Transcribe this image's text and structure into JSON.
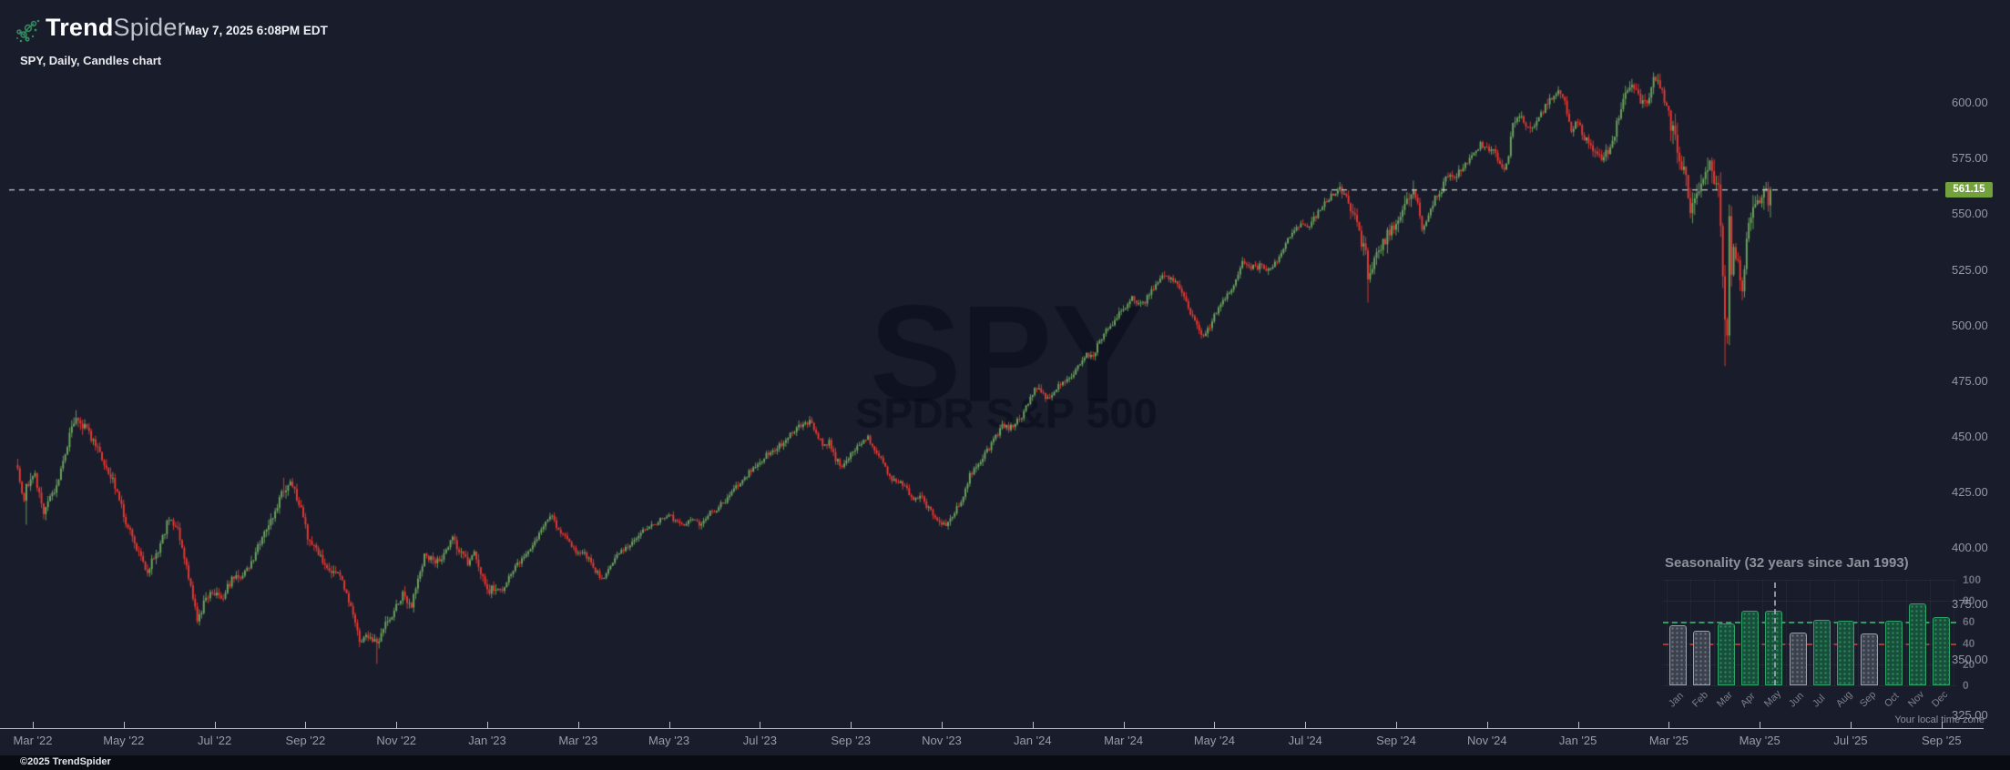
{
  "header": {
    "brand_bold": "Trend",
    "brand_light": "Spider",
    "datetime": "May 7, 2025 6:08PM EDT",
    "subtitle": "SPY, Daily, Candles chart"
  },
  "watermark": {
    "symbol": "SPY",
    "name": "SPDR S&P 500"
  },
  "footer": {
    "copyright": "©2025 TrendSpider",
    "timezone_note": "Your local time zone"
  },
  "colors": {
    "background": "#191d2b",
    "candle_up": "#6ca45f",
    "candle_down": "#e73832",
    "last_price_badge": "#73a23d",
    "dashed_price_line": "#d9dce4",
    "axis_line": "#b9bdc7",
    "seasonality_green": "#2fa468",
    "seasonality_gray": "#9aa0ad",
    "seasonality_avg_up_line": "#2f9e5f",
    "seasonality_avg_down_line": "#a83a33"
  },
  "price_axis": {
    "values": [
      600,
      575,
      550,
      525,
      500,
      475,
      450,
      425,
      400,
      375,
      350,
      325
    ],
    "labels": [
      "600.00",
      "575.00",
      "550.00",
      "525.00",
      "500.00",
      "475.00",
      "450.00",
      "425.00",
      "400.00",
      "375.00",
      "350.00",
      "325.00"
    ],
    "last_price": 561.15,
    "last_price_label": "561.15"
  },
  "x_axis": {
    "labels": [
      "Mar '22",
      "May '22",
      "Jul '22",
      "Sep '22",
      "Nov '22",
      "Jan '23",
      "Mar '23",
      "May '23",
      "Jul '23",
      "Sep '23",
      "Nov '23",
      "Jan '24",
      "Mar '24",
      "May '24",
      "Jul '24",
      "Sep '24",
      "Nov '24",
      "Jan '25",
      "Mar '25",
      "May '25",
      "Jul '25",
      "Sep '25"
    ]
  },
  "chart_data": [
    {
      "type": "candlestick",
      "symbol": "SPY",
      "timeframe": "Daily",
      "ylim": [
        325,
        620
      ],
      "x_range_labels": [
        "Mar '22",
        "Sep '25"
      ],
      "last_close": 561.15,
      "candle_count": 811,
      "price_path_anchors": [
        [
          0,
          434
        ],
        [
          3,
          421
        ],
        [
          4,
          428
        ],
        [
          8,
          432
        ],
        [
          12,
          417
        ],
        [
          17,
          425
        ],
        [
          22,
          444
        ],
        [
          27,
          460
        ],
        [
          33,
          451
        ],
        [
          40,
          439
        ],
        [
          45,
          428
        ],
        [
          50,
          412
        ],
        [
          55,
          400
        ],
        [
          60,
          389
        ],
        [
          63,
          396
        ],
        [
          66,
          401
        ],
        [
          70,
          414
        ],
        [
          74,
          409
        ],
        [
          78,
          393
        ],
        [
          83,
          367
        ],
        [
          86,
          375
        ],
        [
          90,
          380
        ],
        [
          94,
          377
        ],
        [
          99,
          386
        ],
        [
          104,
          388
        ],
        [
          109,
          395
        ],
        [
          112,
          403
        ],
        [
          118,
          414
        ],
        [
          123,
          427
        ],
        [
          126,
          429
        ],
        [
          130,
          421
        ],
        [
          134,
          405
        ],
        [
          138,
          400
        ],
        [
          142,
          392
        ],
        [
          146,
          390
        ],
        [
          150,
          386
        ],
        [
          153,
          377
        ],
        [
          156,
          367
        ],
        [
          158,
          359
        ],
        [
          162,
          361
        ],
        [
          166,
          357
        ],
        [
          170,
          366
        ],
        [
          174,
          372
        ],
        [
          178,
          379
        ],
        [
          182,
          374
        ],
        [
          186,
          390
        ],
        [
          188,
          397
        ],
        [
          192,
          395
        ],
        [
          196,
          394
        ],
        [
          201,
          405
        ],
        [
          204,
          399
        ],
        [
          208,
          393
        ],
        [
          211,
          398
        ],
        [
          214,
          389
        ],
        [
          218,
          381
        ],
        [
          221,
          383
        ],
        [
          224,
          381
        ],
        [
          228,
          389
        ],
        [
          232,
          394
        ],
        [
          236,
          398
        ],
        [
          240,
          405
        ],
        [
          244,
          412
        ],
        [
          247,
          415
        ],
        [
          250,
          408
        ],
        [
          254,
          404
        ],
        [
          258,
          398
        ],
        [
          261,
          399
        ],
        [
          264,
          395
        ],
        [
          267,
          390
        ],
        [
          270,
          386
        ],
        [
          273,
          390
        ],
        [
          276,
          395
        ],
        [
          279,
          399
        ],
        [
          283,
          402
        ],
        [
          287,
          406
        ],
        [
          290,
          409
        ],
        [
          294,
          411
        ],
        [
          298,
          413
        ],
        [
          301,
          415
        ],
        [
          304,
          412
        ],
        [
          307,
          410
        ],
        [
          311,
          413
        ],
        [
          315,
          411
        ],
        [
          319,
          415
        ],
        [
          323,
          418
        ],
        [
          327,
          421
        ],
        [
          331,
          426
        ],
        [
          335,
          431
        ],
        [
          338,
          434
        ],
        [
          341,
          437
        ],
        [
          344,
          440
        ],
        [
          347,
          443
        ],
        [
          351,
          445
        ],
        [
          355,
          449
        ],
        [
          359,
          453
        ],
        [
          363,
          456
        ],
        [
          366,
          457
        ],
        [
          369,
          452
        ],
        [
          372,
          446
        ],
        [
          375,
          448
        ],
        [
          378,
          440
        ],
        [
          381,
          437
        ],
        [
          384,
          441
        ],
        [
          387,
          445
        ],
        [
          390,
          448
        ],
        [
          393,
          450
        ],
        [
          396,
          443
        ],
        [
          399,
          440
        ],
        [
          402,
          434
        ],
        [
          405,
          430
        ],
        [
          408,
          429
        ],
        [
          411,
          426
        ],
        [
          414,
          421
        ],
        [
          417,
          424
        ],
        [
          420,
          419
        ],
        [
          423,
          415
        ],
        [
          426,
          412
        ],
        [
          429,
          410
        ],
        [
          431,
          413
        ],
        [
          434,
          418
        ],
        [
          437,
          423
        ],
        [
          440,
          433
        ],
        [
          443,
          437
        ],
        [
          446,
          441
        ],
        [
          449,
          445
        ],
        [
          452,
          450
        ],
        [
          455,
          455
        ],
        [
          458,
          454
        ],
        [
          461,
          456
        ],
        [
          464,
          459
        ],
        [
          467,
          466
        ],
        [
          470,
          472
        ],
        [
          473,
          470
        ],
        [
          476,
          467
        ],
        [
          479,
          470
        ],
        [
          482,
          474
        ],
        [
          485,
          476
        ],
        [
          488,
          479
        ],
        [
          491,
          483
        ],
        [
          494,
          487
        ],
        [
          497,
          487
        ],
        [
          500,
          493
        ],
        [
          503,
          499
        ],
        [
          506,
          501
        ],
        [
          509,
          505
        ],
        [
          512,
          509
        ],
        [
          515,
          513
        ],
        [
          518,
          510
        ],
        [
          521,
          511
        ],
        [
          524,
          516
        ],
        [
          527,
          519
        ],
        [
          530,
          523
        ],
        [
          533,
          521
        ],
        [
          536,
          519
        ],
        [
          539,
          513
        ],
        [
          542,
          506
        ],
        [
          545,
          501
        ],
        [
          548,
          495
        ],
        [
          551,
          500
        ],
        [
          554,
          506
        ],
        [
          557,
          511
        ],
        [
          560,
          515
        ],
        [
          563,
          520
        ],
        [
          566,
          528
        ],
        [
          569,
          527
        ],
        [
          572,
          526
        ],
        [
          575,
          527
        ],
        [
          578,
          525
        ],
        [
          581,
          528
        ],
        [
          584,
          533
        ],
        [
          587,
          539
        ],
        [
          590,
          543
        ],
        [
          593,
          546
        ],
        [
          596,
          544
        ],
        [
          599,
          548
        ],
        [
          602,
          552
        ],
        [
          605,
          556
        ],
        [
          608,
          559
        ],
        [
          611,
          562
        ],
        [
          614,
          557
        ],
        [
          617,
          551
        ],
        [
          620,
          541
        ],
        [
          623,
          532
        ],
        [
          624,
          520
        ],
        [
          627,
          529
        ],
        [
          630,
          534
        ],
        [
          633,
          541
        ],
        [
          636,
          543
        ],
        [
          639,
          550
        ],
        [
          642,
          556
        ],
        [
          645,
          561
        ],
        [
          647,
          554
        ],
        [
          649,
          543
        ],
        [
          652,
          549
        ],
        [
          655,
          557
        ],
        [
          658,
          561
        ],
        [
          661,
          568
        ],
        [
          664,
          567
        ],
        [
          667,
          570
        ],
        [
          670,
          573
        ],
        [
          673,
          577
        ],
        [
          676,
          582
        ],
        [
          679,
          580
        ],
        [
          682,
          578
        ],
        [
          685,
          573
        ],
        [
          687,
          569
        ],
        [
          689,
          577
        ],
        [
          691,
          591
        ],
        [
          694,
          595
        ],
        [
          697,
          590
        ],
        [
          700,
          588
        ],
        [
          703,
          593
        ],
        [
          706,
          599
        ],
        [
          709,
          602
        ],
        [
          712,
          605
        ],
        [
          715,
          600
        ],
        [
          718,
          588
        ],
        [
          721,
          592
        ],
        [
          723,
          586
        ],
        [
          726,
          582
        ],
        [
          729,
          577
        ],
        [
          732,
          575
        ],
        [
          735,
          578
        ],
        [
          738,
          586
        ],
        [
          741,
          599
        ],
        [
          744,
          605
        ],
        [
          747,
          607
        ],
        [
          750,
          601
        ],
        [
          753,
          600
        ],
        [
          756,
          611
        ],
        [
          759,
          608
        ],
        [
          762,
          599
        ],
        [
          765,
          586
        ],
        [
          768,
          577
        ],
        [
          771,
          566
        ],
        [
          773,
          552
        ],
        [
          776,
          558
        ],
        [
          779,
          564
        ],
        [
          782,
          572
        ],
        [
          784,
          560
        ],
        [
          786,
          565
        ],
        [
          787,
          547
        ],
        [
          788,
          525
        ],
        [
          789,
          504
        ],
        [
          790,
          497
        ],
        [
          791,
          548
        ],
        [
          792,
          524
        ],
        [
          793,
          533
        ],
        [
          795,
          527
        ],
        [
          797,
          514
        ],
        [
          798,
          527
        ],
        [
          799,
          536
        ],
        [
          800,
          547
        ],
        [
          802,
          551
        ],
        [
          804,
          555
        ],
        [
          806,
          559
        ],
        [
          808,
          564
        ],
        [
          809,
          557
        ],
        [
          810,
          561.15
        ]
      ],
      "wick_overrides": {
        "lows": [
          [
            4,
            410.6
          ],
          [
            166,
            348.1
          ],
          [
            624,
            510.3
          ],
          [
            789,
            481.8
          ]
        ],
        "highs": [
          [
            27,
            462.0
          ],
          [
            123,
            431.7
          ],
          [
            756,
            613.2
          ]
        ]
      },
      "volatility_segments": [
        [
          0,
          221,
          1.25
        ],
        [
          222,
          472,
          0.78
        ],
        [
          473,
          614,
          0.7
        ],
        [
          615,
          646,
          1.4
        ],
        [
          647,
          723,
          0.75
        ],
        [
          724,
          763,
          0.95
        ],
        [
          764,
          810,
          1.9
        ]
      ]
    },
    {
      "type": "bar",
      "title": "Seasonality (32 years since Jan 1993)",
      "categories": [
        "Jan",
        "Feb",
        "Mar",
        "Apr",
        "May",
        "Jun",
        "Jul",
        "Aug",
        "Sep",
        "Oct",
        "Nov",
        "Dec"
      ],
      "values": [
        57,
        52,
        59,
        71,
        71,
        50,
        62,
        61,
        49,
        61,
        78,
        65
      ],
      "bar_styles": [
        "gray",
        "gray",
        "green",
        "green",
        "green",
        "gray",
        "green",
        "green",
        "gray",
        "green",
        "green",
        "green"
      ],
      "ylim": [
        0,
        100
      ],
      "y_ticks": [
        0,
        20,
        40,
        60,
        80,
        100
      ],
      "reference_lines": {
        "up_months_avg": 60,
        "down_months_avg": 40
      },
      "highlighted_month": "May",
      "legend_position": "none"
    }
  ]
}
